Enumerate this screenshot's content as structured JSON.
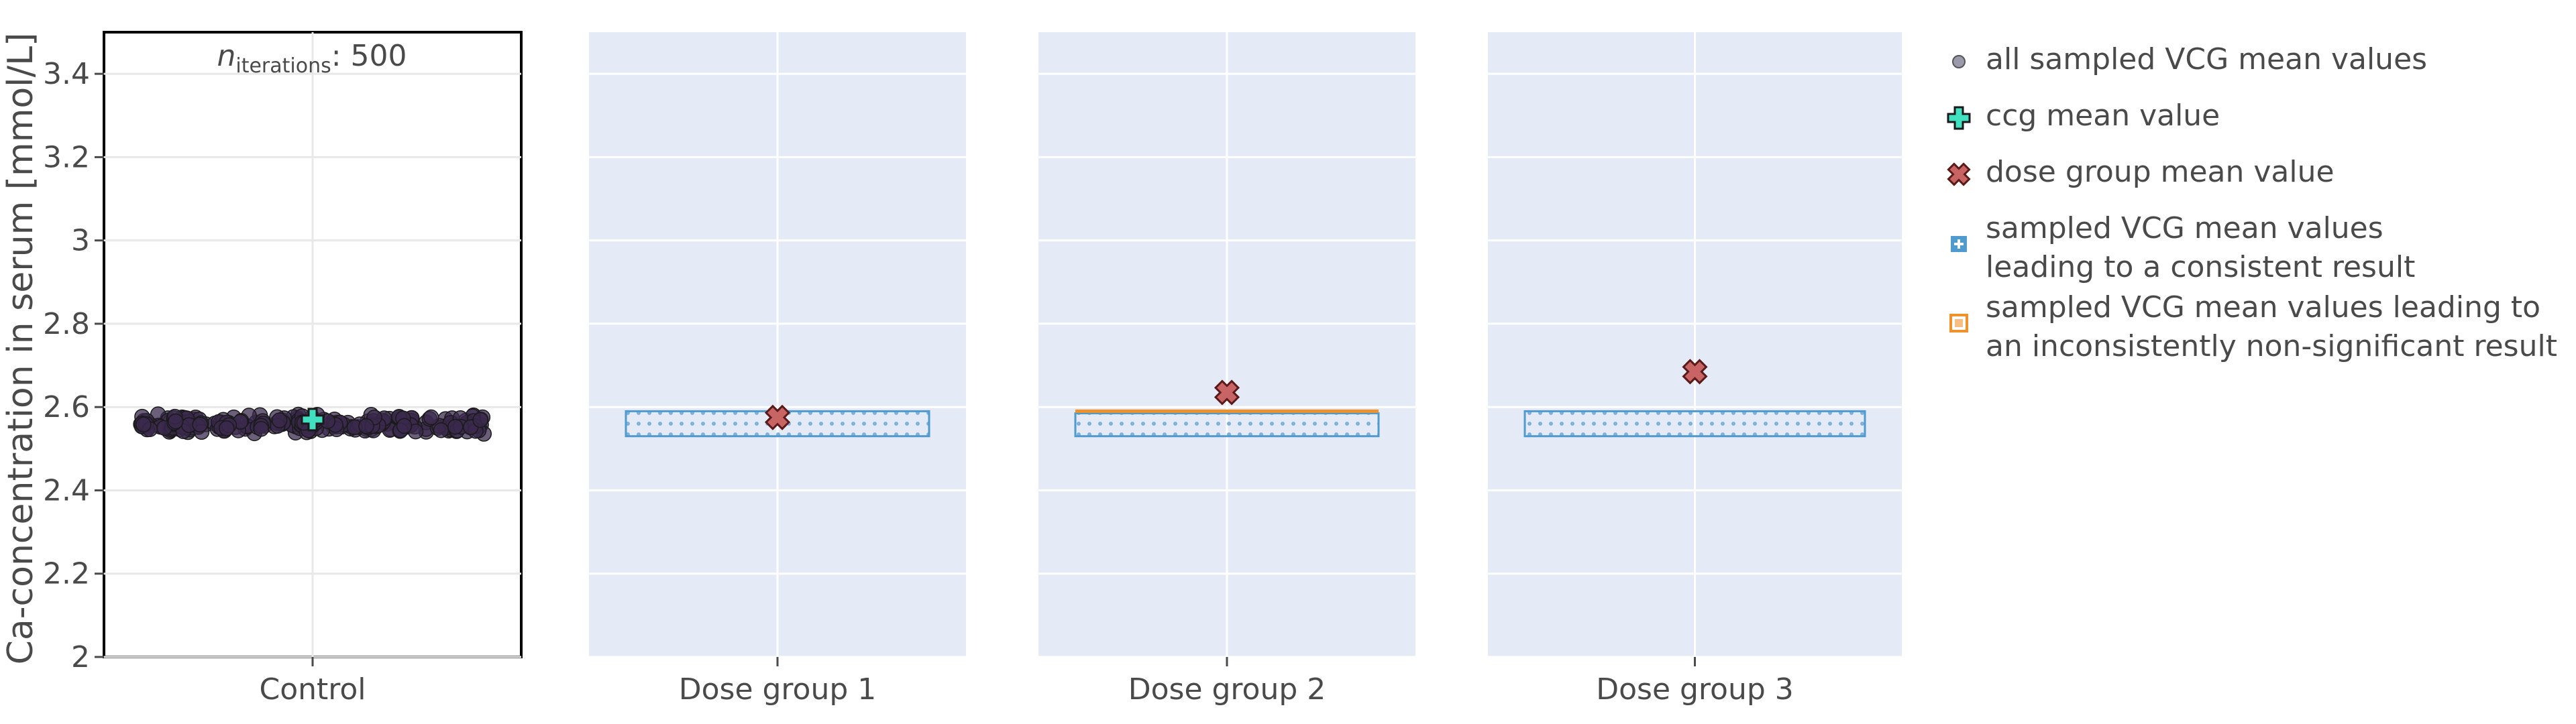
{
  "chart_data": {
    "type": "scatter",
    "ylabel": "Ca-concentration in serum [mmol/L]",
    "ylim": [
      2.0,
      3.5
    ],
    "yticks": [
      "2",
      "2.2",
      "2.4",
      "2.6",
      "2.8",
      "3",
      "3.2",
      "3.4"
    ],
    "ytick_values": [
      2.0,
      2.2,
      2.4,
      2.6,
      2.8,
      3.0,
      3.2,
      3.4
    ],
    "grid": true,
    "legend_placement": "right",
    "annotation": {
      "symbol": "n",
      "subscript": "iterations",
      "text": ": 500"
    },
    "panels": [
      {
        "category": "Control",
        "background": "#ffffff",
        "framed": true,
        "ccg_mean": 2.57,
        "sampled_range": [
          2.53,
          2.59
        ]
      },
      {
        "category": "Dose group 1",
        "background": "#e5ebf6",
        "dose_mean": 2.575,
        "consistent_range": [
          2.53,
          2.59
        ]
      },
      {
        "category": "Dose group 2",
        "background": "#e5ebf6",
        "dose_mean": 2.635,
        "consistent_range": [
          2.53,
          2.585
        ],
        "inconsistent_range": [
          2.585,
          2.59
        ]
      },
      {
        "category": "Dose group 3",
        "background": "#e5ebf6",
        "dose_mean": 2.685,
        "consistent_range": [
          2.53,
          2.59
        ]
      }
    ],
    "legend": [
      {
        "marker": "dot",
        "lines": [
          "all sampled VCG mean values"
        ]
      },
      {
        "marker": "plus",
        "lines": [
          "ccg mean value"
        ]
      },
      {
        "marker": "cross",
        "lines": [
          "dose group mean value"
        ]
      },
      {
        "marker": "blue-square",
        "lines": [
          "sampled VCG mean values",
          "leading to a consistent result"
        ]
      },
      {
        "marker": "orange-square",
        "lines": [
          "sampled VCG mean values leading to",
          "an inconsistently non-significant result"
        ]
      }
    ]
  },
  "colors": {
    "points": "#3b2a4d",
    "ccg_marker": "#40e0c0",
    "dose_marker": "#c86464",
    "consistent": "#4f9bd0",
    "inconsistent": "#f0922b",
    "grid": "#ffffff",
    "text": "#4a4a4a"
  }
}
